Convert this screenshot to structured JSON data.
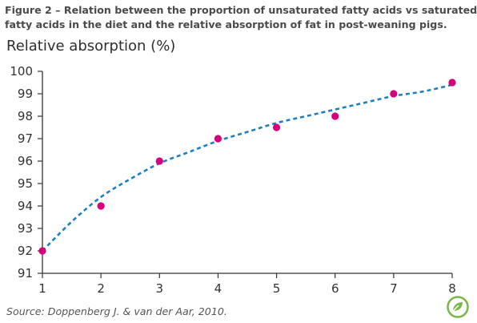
{
  "figure": {
    "title_lines": [
      "Figure 2 – Relation between the proportion of unsaturated fatty acids vs saturated",
      "fatty acids in the diet and the relative absorption of fat in post-weaning pigs."
    ],
    "source": "Source: Doppenberg J. & van der Aar, 2010.",
    "logo_icon": "leaf-logo-icon"
  },
  "chart_data": {
    "type": "scatter",
    "title": "Figure 2 – Relation between the proportion of unsaturated fatty acids vs saturated fatty acids in the diet and the relative absorption of fat in post-weaning pigs.",
    "ylabel": "Relative absorption (%)",
    "xlabel": "",
    "xlim": [
      1,
      8
    ],
    "ylim": [
      91,
      100
    ],
    "xticks": [
      1,
      2,
      3,
      4,
      5,
      6,
      7,
      8
    ],
    "yticks": [
      91,
      92,
      93,
      94,
      95,
      96,
      97,
      98,
      99,
      100
    ],
    "grid": false,
    "series": [
      {
        "kind": "points",
        "color": "#d6007a",
        "x": [
          1,
          2,
          3,
          4,
          5,
          6,
          7,
          8
        ],
        "y": [
          92,
          94,
          96,
          97,
          97.5,
          98,
          99,
          99.5
        ]
      },
      {
        "kind": "trendline",
        "style": "dashed",
        "color": "#1f7fc1",
        "x": [
          1,
          1.5,
          2,
          2.5,
          3,
          3.5,
          4,
          4.5,
          5,
          5.5,
          6,
          6.5,
          7,
          7.5,
          8
        ],
        "y": [
          92.0,
          93.3,
          94.4,
          95.2,
          95.9,
          96.4,
          96.9,
          97.3,
          97.7,
          98.0,
          98.3,
          98.6,
          98.9,
          99.1,
          99.4
        ]
      }
    ]
  }
}
